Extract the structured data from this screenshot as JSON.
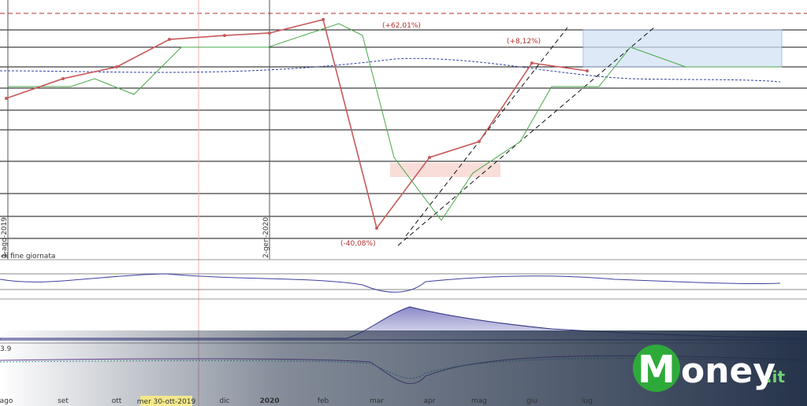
{
  "chart_data": {
    "type": "line",
    "categories": [
      "ago",
      "set",
      "ott",
      null,
      "dic",
      "2020",
      "feb",
      "mar",
      "apr",
      "mag",
      "giu",
      "lug"
    ],
    "series": [
      {
        "color": "#c85a5a",
        "values": [
          64.5,
          72.6,
          77.4,
          88.7,
          90.3,
          91.3,
          96.8,
          11.3,
          40.3,
          46.8,
          79,
          75.8
        ]
      }
    ],
    "ylim": [
      0,
      100
    ],
    "annotations": [
      "(+62,01%)",
      "(-40,08%)",
      "(+8,12%)"
    ],
    "date_markers": [
      "1-ago-2019",
      "2-gen-2020"
    ],
    "cursor_label": "mer 30-ott-2019",
    "panel_note": "di fine giornata",
    "indicator_label": "3.9"
  },
  "logo": {
    "initial": "M",
    "rest": "oney",
    "suffix": ".it"
  }
}
